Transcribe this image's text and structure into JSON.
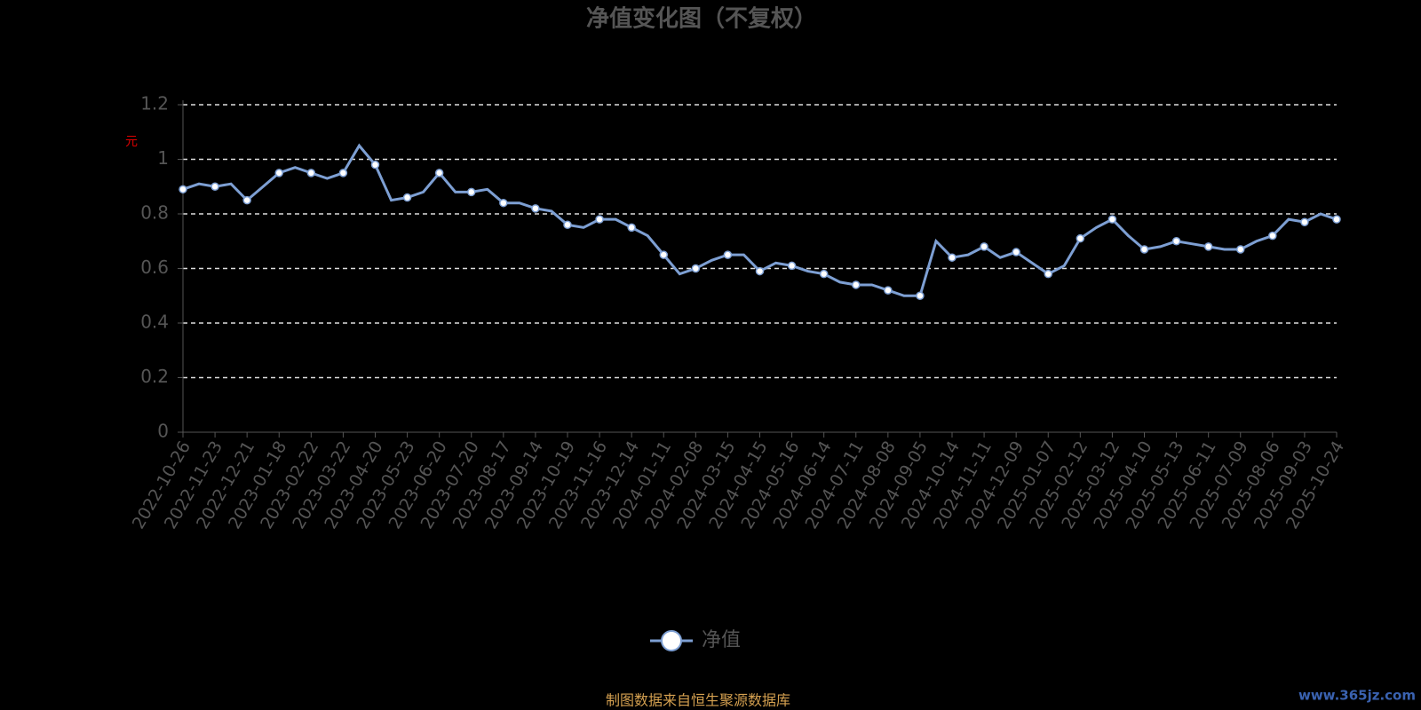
{
  "chart_data": {
    "type": "line",
    "title": "净值变化图（不复权）",
    "y_label": "元",
    "categories": [
      "2022-10-26",
      null,
      "2022-11-23",
      null,
      "2022-12-21",
      null,
      "2023-01-18",
      null,
      "2023-02-22",
      null,
      "2023-03-22",
      null,
      "2023-04-20",
      null,
      "2023-05-23",
      null,
      "2023-06-20",
      null,
      "2023-07-20",
      null,
      "2023-08-17",
      null,
      "2023-09-14",
      null,
      "2023-10-19",
      null,
      "2023-11-16",
      null,
      "2023-12-14",
      null,
      "2024-01-11",
      null,
      "2024-02-08",
      null,
      "2024-03-15",
      null,
      "2024-04-15",
      null,
      "2024-05-16",
      null,
      "2024-06-14",
      null,
      "2024-07-11",
      null,
      "2024-08-08",
      null,
      "2024-09-05",
      null,
      "2024-10-14",
      null,
      "2024-11-11",
      null,
      "2024-12-09",
      null,
      "2025-01-07",
      null,
      "2025-02-12",
      null,
      "2025-03-12",
      null,
      "2025-04-10",
      null,
      "2025-05-13",
      null,
      "2025-06-11",
      null,
      "2025-07-09",
      null,
      "2025-08-06",
      null,
      "2025-09-03",
      null,
      "2025-10-24"
    ],
    "series": [
      {
        "name": "净值",
        "color": "#7d9fd3",
        "values": [
          0.89,
          0.91,
          0.9,
          0.91,
          0.85,
          0.9,
          0.95,
          0.97,
          0.95,
          0.93,
          0.95,
          1.05,
          0.98,
          0.85,
          0.86,
          0.88,
          0.95,
          0.88,
          0.88,
          0.89,
          0.84,
          0.84,
          0.82,
          0.81,
          0.76,
          0.75,
          0.78,
          0.78,
          0.75,
          0.72,
          0.65,
          0.58,
          0.6,
          0.63,
          0.65,
          0.65,
          0.59,
          0.62,
          0.61,
          0.59,
          0.58,
          0.55,
          0.54,
          0.54,
          0.52,
          0.5,
          0.5,
          0.7,
          0.64,
          0.65,
          0.68,
          0.64,
          0.66,
          0.62,
          0.58,
          0.61,
          0.71,
          0.75,
          0.78,
          0.72,
          0.67,
          0.68,
          0.7,
          0.69,
          0.68,
          0.67,
          0.67,
          0.7,
          0.72,
          0.78,
          0.77,
          0.8,
          0.78
        ]
      }
    ],
    "ylim": [
      0,
      1.2
    ],
    "yticks": [
      0,
      0.2,
      0.4,
      0.6,
      0.8,
      1,
      1.2
    ],
    "grid": true,
    "source": "制图数据来自恒生聚源数据库",
    "watermark": "www.365jz.com"
  }
}
